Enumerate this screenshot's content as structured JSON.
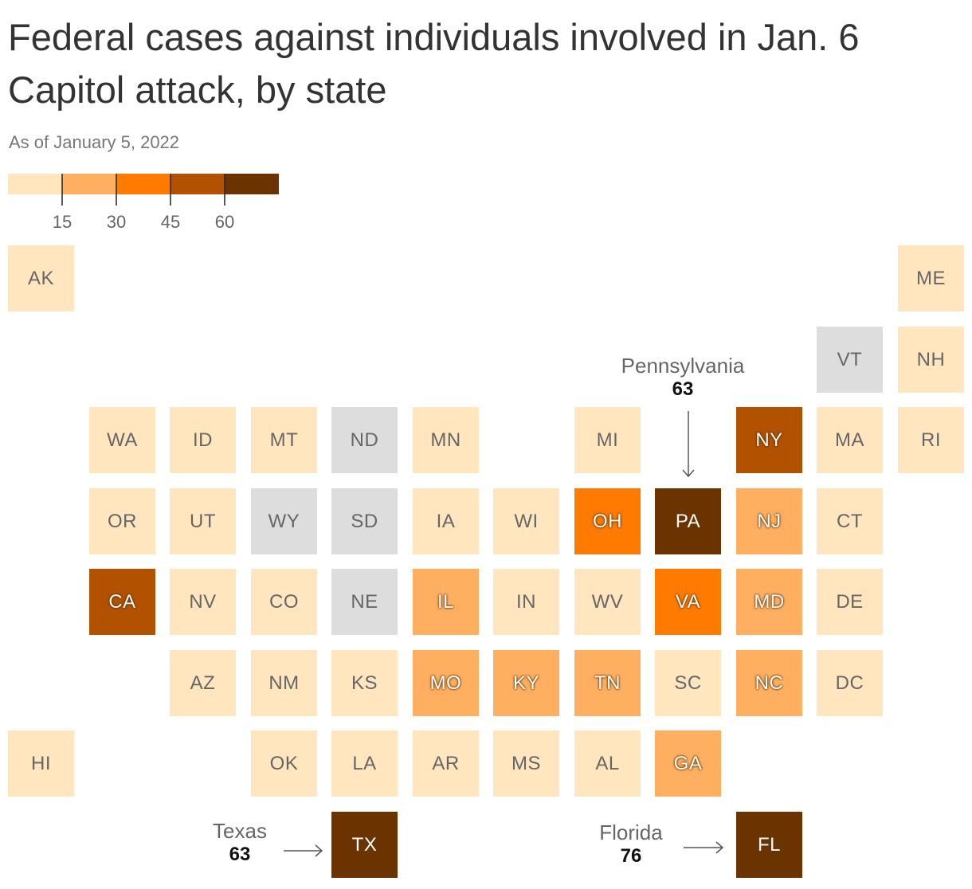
{
  "title": "Federal cases against individuals involved in Jan. 6 Capitol attack, by state",
  "subtitle": "As of January 5, 2022",
  "colors": {
    "no_data": "#dddddd",
    "bins": [
      "#ffe6bf",
      "#ffaf5f",
      "#ff7a00",
      "#b25200",
      "#6b3300"
    ]
  },
  "legend": {
    "thresholds": [
      15,
      30,
      45,
      60
    ],
    "tick_labels": [
      "15",
      "30",
      "45",
      "60"
    ]
  },
  "chart_data": {
    "type": "heatmap",
    "title": "Federal cases against individuals involved in Jan. 6 Capitol attack, by state",
    "subtitle": "As of January 5, 2022",
    "layout": "tile grid map",
    "bin_edges": [
      15,
      30,
      45,
      60
    ],
    "states": [
      {
        "abbr": "AK",
        "row": 0,
        "col": 0,
        "bin": 0
      },
      {
        "abbr": "ME",
        "row": 0,
        "col": 11,
        "bin": 0
      },
      {
        "abbr": "VT",
        "row": 1,
        "col": 10,
        "bin": null
      },
      {
        "abbr": "NH",
        "row": 1,
        "col": 11,
        "bin": 0
      },
      {
        "abbr": "WA",
        "row": 2,
        "col": 1,
        "bin": 0
      },
      {
        "abbr": "ID",
        "row": 2,
        "col": 2,
        "bin": 0
      },
      {
        "abbr": "MT",
        "row": 2,
        "col": 3,
        "bin": 0
      },
      {
        "abbr": "ND",
        "row": 2,
        "col": 4,
        "bin": null
      },
      {
        "abbr": "MN",
        "row": 2,
        "col": 5,
        "bin": 0
      },
      {
        "abbr": "MI",
        "row": 2,
        "col": 7,
        "bin": 0
      },
      {
        "abbr": "NY",
        "row": 2,
        "col": 9,
        "bin": 3
      },
      {
        "abbr": "MA",
        "row": 2,
        "col": 10,
        "bin": 0
      },
      {
        "abbr": "RI",
        "row": 2,
        "col": 11,
        "bin": 0
      },
      {
        "abbr": "OR",
        "row": 3,
        "col": 1,
        "bin": 0
      },
      {
        "abbr": "UT",
        "row": 3,
        "col": 2,
        "bin": 0
      },
      {
        "abbr": "WY",
        "row": 3,
        "col": 3,
        "bin": null
      },
      {
        "abbr": "SD",
        "row": 3,
        "col": 4,
        "bin": null
      },
      {
        "abbr": "IA",
        "row": 3,
        "col": 5,
        "bin": 0
      },
      {
        "abbr": "WI",
        "row": 3,
        "col": 6,
        "bin": 0
      },
      {
        "abbr": "OH",
        "row": 3,
        "col": 7,
        "bin": 2
      },
      {
        "abbr": "PA",
        "row": 3,
        "col": 8,
        "bin": 4
      },
      {
        "abbr": "NJ",
        "row": 3,
        "col": 9,
        "bin": 1
      },
      {
        "abbr": "CT",
        "row": 3,
        "col": 10,
        "bin": 0
      },
      {
        "abbr": "CA",
        "row": 4,
        "col": 1,
        "bin": 3
      },
      {
        "abbr": "NV",
        "row": 4,
        "col": 2,
        "bin": 0
      },
      {
        "abbr": "CO",
        "row": 4,
        "col": 3,
        "bin": 0
      },
      {
        "abbr": "NE",
        "row": 4,
        "col": 4,
        "bin": null
      },
      {
        "abbr": "IL",
        "row": 4,
        "col": 5,
        "bin": 1
      },
      {
        "abbr": "IN",
        "row": 4,
        "col": 6,
        "bin": 0
      },
      {
        "abbr": "WV",
        "row": 4,
        "col": 7,
        "bin": 0
      },
      {
        "abbr": "VA",
        "row": 4,
        "col": 8,
        "bin": 2
      },
      {
        "abbr": "MD",
        "row": 4,
        "col": 9,
        "bin": 1
      },
      {
        "abbr": "DE",
        "row": 4,
        "col": 10,
        "bin": 0
      },
      {
        "abbr": "AZ",
        "row": 5,
        "col": 2,
        "bin": 0
      },
      {
        "abbr": "NM",
        "row": 5,
        "col": 3,
        "bin": 0
      },
      {
        "abbr": "KS",
        "row": 5,
        "col": 4,
        "bin": 0
      },
      {
        "abbr": "MO",
        "row": 5,
        "col": 5,
        "bin": 1
      },
      {
        "abbr": "KY",
        "row": 5,
        "col": 6,
        "bin": 1
      },
      {
        "abbr": "TN",
        "row": 5,
        "col": 7,
        "bin": 1
      },
      {
        "abbr": "SC",
        "row": 5,
        "col": 8,
        "bin": 0
      },
      {
        "abbr": "NC",
        "row": 5,
        "col": 9,
        "bin": 1
      },
      {
        "abbr": "DC",
        "row": 5,
        "col": 10,
        "bin": 0
      },
      {
        "abbr": "HI",
        "row": 6,
        "col": 0,
        "bin": 0
      },
      {
        "abbr": "OK",
        "row": 6,
        "col": 3,
        "bin": 0
      },
      {
        "abbr": "LA",
        "row": 6,
        "col": 4,
        "bin": 0
      },
      {
        "abbr": "AR",
        "row": 6,
        "col": 5,
        "bin": 0
      },
      {
        "abbr": "MS",
        "row": 6,
        "col": 6,
        "bin": 0
      },
      {
        "abbr": "AL",
        "row": 6,
        "col": 7,
        "bin": 0
      },
      {
        "abbr": "GA",
        "row": 6,
        "col": 8,
        "bin": 1
      },
      {
        "abbr": "TX",
        "row": 7,
        "col": 4,
        "bin": 4
      },
      {
        "abbr": "FL",
        "row": 7,
        "col": 9,
        "bin": 4
      }
    ],
    "annotations": [
      {
        "state": "PA",
        "name": "Pennsylvania",
        "value": 63
      },
      {
        "state": "TX",
        "name": "Texas",
        "value": 63
      },
      {
        "state": "FL",
        "name": "Florida",
        "value": 76
      }
    ]
  }
}
